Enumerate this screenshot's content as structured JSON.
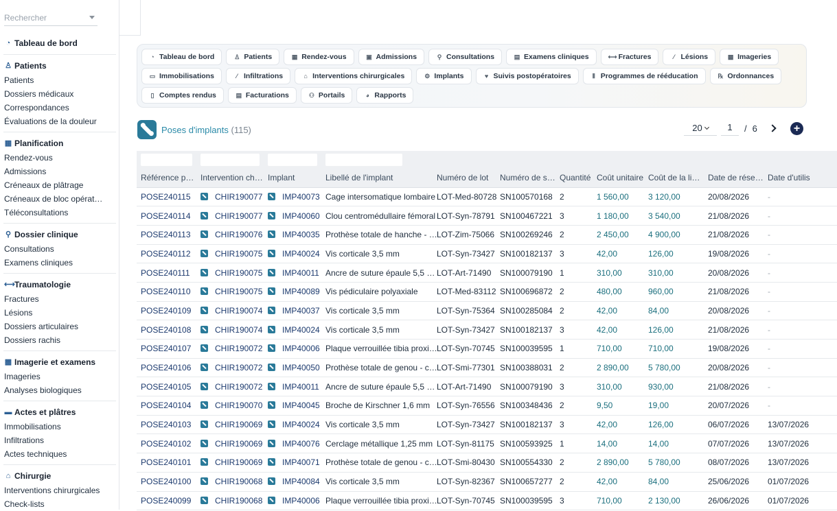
{
  "search": {
    "placeholder": "Rechercher"
  },
  "sidebar": {
    "top": {
      "label": "Tableau de bord",
      "icon": "gauge-icon"
    },
    "sections": [
      {
        "title": "Patients",
        "icon": "patient-icon",
        "items": [
          "Patients",
          "Dossiers médicaux",
          "Correspondances",
          "Évaluations de la douleur"
        ]
      },
      {
        "title": "Planification",
        "icon": "calendar-icon",
        "items": [
          "Rendez-vous",
          "Admissions",
          "Créneaux de plâtrage",
          "Créneaux de bloc opérat…",
          "Téléconsultations"
        ]
      },
      {
        "title": "Dossier clinique",
        "icon": "stethoscope-icon",
        "items": [
          "Consultations",
          "Examens cliniques"
        ]
      },
      {
        "title": "Traumatologie",
        "icon": "bone-icon",
        "items": [
          "Fractures",
          "Lésions",
          "Dossiers articulaires",
          "Dossiers rachis"
        ]
      },
      {
        "title": "Imagerie et examens",
        "icon": "xray-icon",
        "items": [
          "Imageries",
          "Analyses biologiques"
        ]
      },
      {
        "title": "Actes et plâtres",
        "icon": "bandage-icon",
        "items": [
          "Immobilisations",
          "Infiltrations",
          "Actes techniques"
        ]
      },
      {
        "title": "Chirurgie",
        "icon": "bed-icon",
        "items": [
          "Interventions chirurgicales",
          "Check-lists"
        ]
      }
    ]
  },
  "tabs": [
    {
      "label": "Tableau de bord",
      "icon": "gauge-icon",
      "glyph": "◔"
    },
    {
      "label": "Patients",
      "icon": "patient-icon",
      "glyph": "♙"
    },
    {
      "label": "Rendez-vous",
      "icon": "calendar-icon",
      "glyph": "▦"
    },
    {
      "label": "Admissions",
      "icon": "clipboard-icon",
      "glyph": "▣"
    },
    {
      "label": "Consultations",
      "icon": "stethoscope-icon",
      "glyph": "⚲"
    },
    {
      "label": "Examens cliniques",
      "icon": "notes-icon",
      "glyph": "▤"
    },
    {
      "label": "Fractures",
      "icon": "bone-icon",
      "glyph": "⟷"
    },
    {
      "label": "Lésions",
      "icon": "bandage-icon",
      "glyph": "⁄"
    },
    {
      "label": "Imageries",
      "icon": "xray-icon",
      "glyph": "▩"
    },
    {
      "label": "Immobilisations",
      "icon": "splint-icon",
      "glyph": "▭"
    },
    {
      "label": "Infiltrations",
      "icon": "syringe-icon",
      "glyph": "⁄"
    },
    {
      "label": "Interventions chirurgicales",
      "icon": "bed-icon",
      "glyph": "⌂"
    },
    {
      "label": "Implants",
      "icon": "gears-icon",
      "glyph": "⚙"
    },
    {
      "label": "Suivis postopératoires",
      "icon": "heart-icon",
      "glyph": "♥"
    },
    {
      "label": "Programmes de rééducation",
      "icon": "dumbbell-icon",
      "glyph": "⦀"
    },
    {
      "label": "Ordonnances",
      "icon": "prescription-icon",
      "glyph": "℞"
    },
    {
      "label": "Comptes rendus",
      "icon": "file-icon",
      "glyph": "▯"
    },
    {
      "label": "Facturations",
      "icon": "invoice-icon",
      "glyph": "▤"
    },
    {
      "label": "Portails",
      "icon": "users-icon",
      "glyph": "⚇"
    },
    {
      "label": "Rapports",
      "icon": "chart-pie-icon",
      "glyph": "◕"
    }
  ],
  "section": {
    "title": "Poses d'implants",
    "count": "(115)",
    "icon": "bone-icon"
  },
  "pager": {
    "per_page": "20",
    "page": "1",
    "separator": "/",
    "total": "6"
  },
  "table": {
    "columns": [
      "Référence p…",
      "Intervention ch…",
      "Implant",
      "Libellé de l'implant",
      "Numéro de lot",
      "Numéro de s…",
      "Quantité",
      "Coût unitaire",
      "Coût de la li…",
      "Date de rése…",
      "Date d'utilis"
    ],
    "rows": [
      [
        "POSE240115",
        "CHIR190077",
        "IMP40073",
        "Cage intersomatique lombaire",
        "LOT-Med-80728",
        "SN100570168",
        "2",
        "1 560,00",
        "3 120,00",
        "20/08/2026",
        "-"
      ],
      [
        "POSE240114",
        "CHIR190077",
        "IMP40060",
        "Clou centromédullaire fémoral",
        "LOT-Syn-78791",
        "SN100467221",
        "3",
        "1 180,00",
        "3 540,00",
        "21/08/2026",
        "-"
      ],
      [
        "POSE240113",
        "CHIR190076",
        "IMP40035",
        "Prothèse totale de hanche - …",
        "LOT-Zim-75066",
        "SN100269246",
        "2",
        "2 450,00",
        "4 900,00",
        "21/08/2026",
        "-"
      ],
      [
        "POSE240112",
        "CHIR190075",
        "IMP40024",
        "Vis corticale 3,5 mm",
        "LOT-Syn-73427",
        "SN100182137",
        "3",
        "42,00",
        "126,00",
        "19/08/2026",
        "-"
      ],
      [
        "POSE240111",
        "CHIR190075",
        "IMP40011",
        "Ancre de suture épaule 5,5 …",
        "LOT-Art-71490",
        "SN100079190",
        "1",
        "310,00",
        "310,00",
        "20/08/2026",
        "-"
      ],
      [
        "POSE240110",
        "CHIR190075",
        "IMP40089",
        "Vis pédiculaire polyaxiale",
        "LOT-Med-83112",
        "SN100696872",
        "2",
        "480,00",
        "960,00",
        "21/08/2026",
        "-"
      ],
      [
        "POSE240109",
        "CHIR190074",
        "IMP40037",
        "Vis corticale 3,5 mm",
        "LOT-Syn-75364",
        "SN100285084",
        "2",
        "42,00",
        "84,00",
        "20/08/2026",
        "-"
      ],
      [
        "POSE240108",
        "CHIR190074",
        "IMP40024",
        "Vis corticale 3,5 mm",
        "LOT-Syn-73427",
        "SN100182137",
        "3",
        "42,00",
        "126,00",
        "21/08/2026",
        "-"
      ],
      [
        "POSE240107",
        "CHIR190072",
        "IMP40006",
        "Plaque verrouillée tibia proxi…",
        "LOT-Syn-70745",
        "SN100039595",
        "1",
        "710,00",
        "710,00",
        "19/08/2026",
        "-"
      ],
      [
        "POSE240106",
        "CHIR190072",
        "IMP40050",
        "Prothèse totale de genou - c…",
        "LOT-Smi-77301",
        "SN100388031",
        "2",
        "2 890,00",
        "5 780,00",
        "20/08/2026",
        "-"
      ],
      [
        "POSE240105",
        "CHIR190072",
        "IMP40011",
        "Ancre de suture épaule 5,5 …",
        "LOT-Art-71490",
        "SN100079190",
        "3",
        "310,00",
        "930,00",
        "21/08/2026",
        "-"
      ],
      [
        "POSE240104",
        "CHIR190070",
        "IMP40045",
        "Broche de Kirschner 1,6 mm",
        "LOT-Syn-76556",
        "SN100348436",
        "2",
        "9,50",
        "19,00",
        "20/07/2026",
        "-"
      ],
      [
        "POSE240103",
        "CHIR190069",
        "IMP40024",
        "Vis corticale 3,5 mm",
        "LOT-Syn-73427",
        "SN100182137",
        "3",
        "42,00",
        "126,00",
        "06/07/2026",
        "13/07/2026"
      ],
      [
        "POSE240102",
        "CHIR190069",
        "IMP40076",
        "Cerclage métallique 1,25 mm",
        "LOT-Syn-81175",
        "SN100593925",
        "1",
        "14,00",
        "14,00",
        "07/07/2026",
        "13/07/2026"
      ],
      [
        "POSE240101",
        "CHIR190069",
        "IMP40071",
        "Prothèse totale de genou - c…",
        "LOT-Smi-80430",
        "SN100554330",
        "2",
        "2 890,00",
        "5 780,00",
        "08/07/2026",
        "13/07/2026"
      ],
      [
        "POSE240100",
        "CHIR190068",
        "IMP40084",
        "Vis corticale 3,5 mm",
        "LOT-Syn-82367",
        "SN100657277",
        "2",
        "42,00",
        "84,00",
        "25/06/2026",
        "01/07/2026"
      ],
      [
        "POSE240099",
        "CHIR190068",
        "IMP40006",
        "Plaque verrouillée tibia proxi…",
        "LOT-Syn-70745",
        "SN100039595",
        "3",
        "710,00",
        "2 130,00",
        "26/06/2026",
        "01/07/2026"
      ]
    ]
  },
  "colors": {
    "accent": "#2a7a99",
    "link": "#1c3a6e",
    "money": "#1b6f7e",
    "add_button": "#1b2a54"
  }
}
